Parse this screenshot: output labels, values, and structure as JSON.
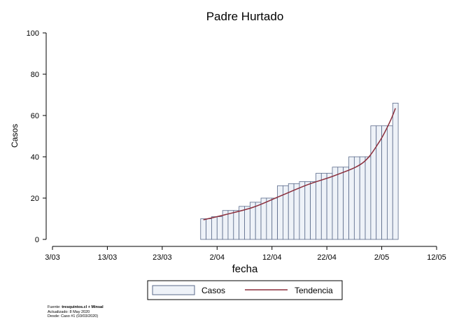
{
  "chart_data": {
    "type": "bar",
    "title": "Padre Hurtado",
    "xlabel": "fecha",
    "ylabel": "Casos",
    "ylim": [
      0,
      100
    ],
    "yticks": [
      0,
      20,
      40,
      60,
      80,
      100
    ],
    "xlim": [
      "2020-03-03",
      "2020-05-12"
    ],
    "xticks": [
      {
        "date": "2020-03-03",
        "label": "3/03"
      },
      {
        "date": "2020-03-13",
        "label": "13/03"
      },
      {
        "date": "2020-03-23",
        "label": "23/03"
      },
      {
        "date": "2020-04-02",
        "label": "2/04"
      },
      {
        "date": "2020-04-12",
        "label": "12/04"
      },
      {
        "date": "2020-04-22",
        "label": "22/04"
      },
      {
        "date": "2020-05-02",
        "label": "2/05"
      },
      {
        "date": "2020-05-12",
        "label": "12/05"
      }
    ],
    "grid": false,
    "legend_position": "bottom",
    "series": [
      {
        "name": "Casos",
        "type": "bar",
        "color": "#eef2f8",
        "edge_color": "#5a6a8a",
        "x": [
          "2020-03-30",
          "2020-03-31",
          "2020-04-01",
          "2020-04-02",
          "2020-04-03",
          "2020-04-04",
          "2020-04-05",
          "2020-04-06",
          "2020-04-07",
          "2020-04-08",
          "2020-04-09",
          "2020-04-10",
          "2020-04-11",
          "2020-04-12",
          "2020-04-13",
          "2020-04-14",
          "2020-04-15",
          "2020-04-16",
          "2020-04-17",
          "2020-04-18",
          "2020-04-19",
          "2020-04-20",
          "2020-04-21",
          "2020-04-22",
          "2020-04-23",
          "2020-04-24",
          "2020-04-25",
          "2020-04-26",
          "2020-04-27",
          "2020-04-28",
          "2020-04-29",
          "2020-04-30",
          "2020-05-01",
          "2020-05-02",
          "2020-05-03",
          "2020-05-04"
        ],
        "values": [
          10,
          10,
          11,
          11,
          14,
          14,
          14,
          16,
          16,
          18,
          18,
          20,
          20,
          20,
          26,
          26,
          27,
          27,
          28,
          28,
          28,
          32,
          32,
          32,
          35,
          35,
          35,
          40,
          40,
          40,
          40,
          55,
          55,
          55,
          55,
          66
        ]
      },
      {
        "name": "Tendencia",
        "type": "line",
        "color": "#8b2e3c",
        "x": [
          "2020-03-30",
          "2020-04-03",
          "2020-04-08",
          "2020-04-13",
          "2020-04-18",
          "2020-04-23",
          "2020-04-28",
          "2020-05-01",
          "2020-05-03",
          "2020-05-04"
        ],
        "values": [
          9.5,
          12,
          15.5,
          21,
          26.5,
          31,
          37,
          47,
          57,
          63.5
        ]
      }
    ]
  },
  "source": {
    "line1_prefix": "Fuente: ",
    "line1_bold": "tresquintos.cl",
    "line1_suffix": " + Minsal",
    "line2": "Actualizado: 8 May 2020",
    "line3": "Desde: Caso #1  (03/03/2020)"
  }
}
